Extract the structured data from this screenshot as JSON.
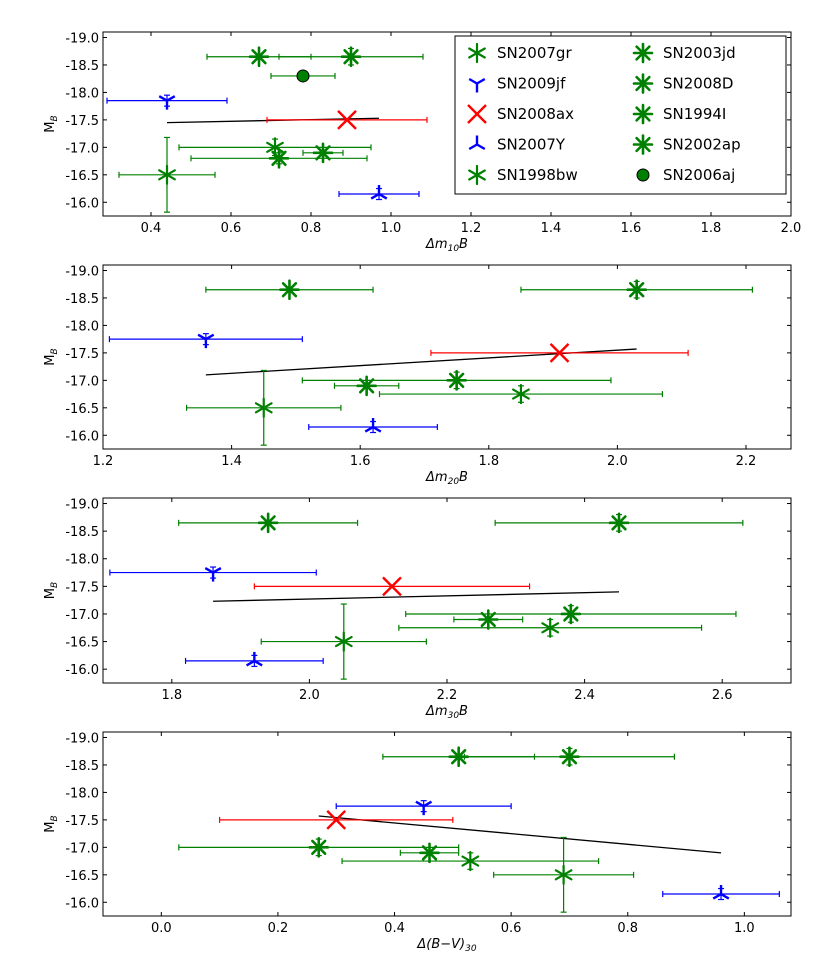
{
  "colors": {
    "green": "#008000",
    "blue": "#0000ff",
    "red": "#ff0000",
    "black": "#000000",
    "green_dark": "#006400"
  },
  "legend": {
    "location": "upper-right of first panel",
    "entries": [
      {
        "name": "SN2007gr",
        "marker": "star6thin",
        "color": "#008000"
      },
      {
        "name": "SN2009jf",
        "marker": "tri_down",
        "color": "#0000ff"
      },
      {
        "name": "SN2008ax",
        "marker": "x",
        "color": "#ff0000"
      },
      {
        "name": "SN2007Y",
        "marker": "tri_up",
        "color": "#0000ff"
      },
      {
        "name": "SN1998bw",
        "marker": "star6thin",
        "color": "#008000"
      },
      {
        "name": "SN2003jd",
        "marker": "asterisk",
        "color": "#008000"
      },
      {
        "name": "SN2008D",
        "marker": "asterisk",
        "color": "#008000"
      },
      {
        "name": "SN1994I",
        "marker": "asterisk",
        "color": "#008000"
      },
      {
        "name": "SN2002ap",
        "marker": "asterisk",
        "color": "#008000"
      },
      {
        "name": "SN2006aj",
        "marker": "circle",
        "color": "#008000"
      }
    ]
  },
  "chart_data": [
    {
      "type": "scatter",
      "title": "",
      "xlabel": "Δm10B",
      "xlabel_main": "Δm",
      "xlabel_sub": "10",
      "xlabel_tail": "B",
      "ylabel": "MB",
      "ylabel_main": "M",
      "ylabel_sub": "B",
      "xlim": [
        0.28,
        2.0
      ],
      "ylim": [
        -15.75,
        -19.1
      ],
      "xticks": [
        0.4,
        0.6,
        0.8,
        1.0,
        1.2,
        1.4,
        1.6,
        1.8,
        2.0
      ],
      "xtick_labels": [
        "0.4",
        "0.6",
        "0.8",
        "1.0",
        "1.2",
        "1.4",
        "1.6",
        "1.8",
        "2.0"
      ],
      "yticks": [
        -19.0,
        -18.5,
        -18.0,
        -17.5,
        -17.0,
        -16.5,
        -16.0
      ],
      "ytick_labels": [
        "-19.0",
        "-18.5",
        "-18.0",
        "-17.5",
        "-17.0",
        "-16.5",
        "-16.0"
      ],
      "points": [
        {
          "sn": "SN2007gr",
          "x": 0.71,
          "y": -17.0,
          "xerr": 0.24,
          "yerr": 0.15,
          "marker": "star6thin",
          "color": "#008000"
        },
        {
          "sn": "SN2009jf",
          "x": 0.44,
          "y": -17.85,
          "xerr": 0.15,
          "yerr": 0.1,
          "marker": "tri_down",
          "color": "#0000ff"
        },
        {
          "sn": "SN2008ax",
          "x": 0.89,
          "y": -17.5,
          "xerr": 0.2,
          "yerr": 0.0,
          "marker": "x",
          "color": "#ff0000"
        },
        {
          "sn": "SN2007Y",
          "x": 0.97,
          "y": -16.15,
          "xerr": 0.1,
          "yerr": 0.1,
          "marker": "tri_up",
          "color": "#0000ff"
        },
        {
          "sn": "SN1998bw",
          "x": 0.44,
          "y": -16.5,
          "xerr": 0.12,
          "yerr": 0.68,
          "marker": "star6thin",
          "color": "#008000"
        },
        {
          "sn": "SN2003jd",
          "x": 0.67,
          "y": -18.65,
          "xerr": 0.13,
          "yerr": 0.0,
          "marker": "asterisk",
          "color": "#008000"
        },
        {
          "sn": "SN2008D",
          "x": 0.9,
          "y": -18.65,
          "xerr": 0.18,
          "yerr": 0.15,
          "marker": "asterisk",
          "color": "#008000"
        },
        {
          "sn": "SN1994I",
          "x": 0.72,
          "y": -16.8,
          "xerr": 0.22,
          "yerr": 0.1,
          "marker": "asterisk",
          "color": "#008000"
        },
        {
          "sn": "SN2002ap",
          "x": 0.83,
          "y": -16.9,
          "xerr": 0.05,
          "yerr": 0.0,
          "marker": "asterisk",
          "color": "#008000"
        },
        {
          "sn": "SN2006aj",
          "x": 0.78,
          "y": -18.3,
          "xerr": 0.08,
          "yerr": 0.0,
          "marker": "circle",
          "color": "#008000"
        }
      ],
      "fit_line": {
        "x": [
          0.44,
          0.97
        ],
        "y": [
          -17.45,
          -17.53
        ],
        "color": "#000000"
      },
      "show_legend": true
    },
    {
      "type": "scatter",
      "title": "",
      "xlabel": "Δm20B",
      "xlabel_main": "Δm",
      "xlabel_sub": "20",
      "xlabel_tail": "B",
      "ylabel": "MB",
      "ylabel_main": "M",
      "ylabel_sub": "B",
      "xlim": [
        1.2,
        2.27
      ],
      "ylim": [
        -15.75,
        -19.1
      ],
      "xticks": [
        1.2,
        1.4,
        1.6,
        1.8,
        2.0,
        2.2
      ],
      "xtick_labels": [
        "1.2",
        "1.4",
        "1.6",
        "1.8",
        "2.0",
        "2.2"
      ],
      "yticks": [
        -19.0,
        -18.5,
        -18.0,
        -17.5,
        -17.0,
        -16.5,
        -16.0
      ],
      "ytick_labels": [
        "-19.0",
        "-18.5",
        "-18.0",
        "-17.5",
        "-17.0",
        "-16.5",
        "-16.0"
      ],
      "points": [
        {
          "sn": "SN2007gr",
          "x": 1.85,
          "y": -16.75,
          "xerr": 0.22,
          "yerr": 0.15,
          "marker": "star6thin",
          "color": "#008000"
        },
        {
          "sn": "SN2009jf",
          "x": 1.36,
          "y": -17.75,
          "xerr": 0.15,
          "yerr": 0.1,
          "marker": "tri_down",
          "color": "#0000ff"
        },
        {
          "sn": "SN2008ax",
          "x": 1.91,
          "y": -17.5,
          "xerr": 0.2,
          "yerr": 0.0,
          "marker": "x",
          "color": "#ff0000"
        },
        {
          "sn": "SN2007Y",
          "x": 1.62,
          "y": -16.15,
          "xerr": 0.1,
          "yerr": 0.1,
          "marker": "tri_up",
          "color": "#0000ff"
        },
        {
          "sn": "SN1998bw",
          "x": 1.45,
          "y": -16.5,
          "xerr": 0.12,
          "yerr": 0.68,
          "marker": "star6thin",
          "color": "#008000"
        },
        {
          "sn": "SN2003jd",
          "x": 1.49,
          "y": -18.65,
          "xerr": 0.13,
          "yerr": 0.0,
          "marker": "asterisk",
          "color": "#008000"
        },
        {
          "sn": "SN2008D",
          "x": 2.03,
          "y": -18.65,
          "xerr": 0.18,
          "yerr": 0.15,
          "marker": "asterisk",
          "color": "#008000"
        },
        {
          "sn": "SN1994I",
          "x": 1.75,
          "y": -17.0,
          "xerr": 0.24,
          "yerr": 0.15,
          "marker": "asterisk",
          "color": "#008000"
        },
        {
          "sn": "SN2002ap",
          "x": 1.61,
          "y": -16.9,
          "xerr": 0.05,
          "yerr": 0.0,
          "marker": "asterisk",
          "color": "#008000"
        }
      ],
      "fit_line": {
        "x": [
          1.36,
          2.03
        ],
        "y": [
          -17.1,
          -17.57
        ],
        "color": "#000000"
      },
      "show_legend": false
    },
    {
      "type": "scatter",
      "title": "",
      "xlabel": "Δm30B",
      "xlabel_main": "Δm",
      "xlabel_sub": "30",
      "xlabel_tail": "B",
      "ylabel": "MB",
      "ylabel_main": "M",
      "ylabel_sub": "B",
      "xlim": [
        1.7,
        2.7
      ],
      "ylim": [
        -15.75,
        -19.1
      ],
      "xticks": [
        1.8,
        2.0,
        2.2,
        2.4,
        2.6
      ],
      "xtick_labels": [
        "1.8",
        "2.0",
        "2.2",
        "2.4",
        "2.6"
      ],
      "yticks": [
        -19.0,
        -18.5,
        -18.0,
        -17.5,
        -17.0,
        -16.5,
        -16.0
      ],
      "ytick_labels": [
        "-19.0",
        "-18.5",
        "-18.0",
        "-17.5",
        "-17.0",
        "-16.5",
        "-16.0"
      ],
      "points": [
        {
          "sn": "SN2007gr",
          "x": 2.35,
          "y": -16.75,
          "xerr": 0.22,
          "yerr": 0.15,
          "marker": "star6thin",
          "color": "#008000"
        },
        {
          "sn": "SN2009jf",
          "x": 1.86,
          "y": -17.75,
          "xerr": 0.15,
          "yerr": 0.1,
          "marker": "tri_down",
          "color": "#0000ff"
        },
        {
          "sn": "SN2008ax",
          "x": 2.12,
          "y": -17.5,
          "xerr": 0.2,
          "yerr": 0.0,
          "marker": "x",
          "color": "#ff0000"
        },
        {
          "sn": "SN2007Y",
          "x": 1.92,
          "y": -16.15,
          "xerr": 0.1,
          "yerr": 0.1,
          "marker": "tri_up",
          "color": "#0000ff"
        },
        {
          "sn": "SN1998bw",
          "x": 2.05,
          "y": -16.5,
          "xerr": 0.12,
          "yerr": 0.68,
          "marker": "star6thin",
          "color": "#008000"
        },
        {
          "sn": "SN2003jd",
          "x": 1.94,
          "y": -18.65,
          "xerr": 0.13,
          "yerr": 0.0,
          "marker": "asterisk",
          "color": "#008000"
        },
        {
          "sn": "SN2008D",
          "x": 2.45,
          "y": -18.65,
          "xerr": 0.18,
          "yerr": 0.15,
          "marker": "asterisk",
          "color": "#008000"
        },
        {
          "sn": "SN1994I",
          "x": 2.38,
          "y": -17.0,
          "xerr": 0.24,
          "yerr": 0.15,
          "marker": "asterisk",
          "color": "#008000"
        },
        {
          "sn": "SN2002ap",
          "x": 2.26,
          "y": -16.9,
          "xerr": 0.05,
          "yerr": 0.0,
          "marker": "asterisk",
          "color": "#008000"
        }
      ],
      "fit_line": {
        "x": [
          1.86,
          2.45
        ],
        "y": [
          -17.23,
          -17.4
        ],
        "color": "#000000"
      },
      "show_legend": false
    },
    {
      "type": "scatter",
      "title": "",
      "xlabel": "Δ(B−V)30",
      "xlabel_main": "Δ(B−V)",
      "xlabel_sub": "30",
      "xlabel_tail": "",
      "ylabel": "MB",
      "ylabel_main": "M",
      "ylabel_sub": "B",
      "xlim": [
        -0.1,
        1.08
      ],
      "ylim": [
        -15.75,
        -19.1
      ],
      "xticks": [
        0.0,
        0.2,
        0.4,
        0.6,
        0.8,
        1.0
      ],
      "xtick_labels": [
        "0.0",
        "0.2",
        "0.4",
        "0.6",
        "0.8",
        "1.0"
      ],
      "yticks": [
        -19.0,
        -18.5,
        -18.0,
        -17.5,
        -17.0,
        -16.5,
        -16.0
      ],
      "ytick_labels": [
        "-19.0",
        "-18.5",
        "-18.0",
        "-17.5",
        "-17.0",
        "-16.5",
        "-16.0"
      ],
      "points": [
        {
          "sn": "SN2007gr",
          "x": 0.53,
          "y": -16.75,
          "xerr": 0.22,
          "yerr": 0.15,
          "marker": "star6thin",
          "color": "#008000"
        },
        {
          "sn": "SN2009jf",
          "x": 0.45,
          "y": -17.75,
          "xerr": 0.15,
          "yerr": 0.1,
          "marker": "tri_down",
          "color": "#0000ff"
        },
        {
          "sn": "SN2008ax",
          "x": 0.3,
          "y": -17.5,
          "xerr": 0.2,
          "yerr": 0.0,
          "marker": "x",
          "color": "#ff0000"
        },
        {
          "sn": "SN2007Y",
          "x": 0.96,
          "y": -16.15,
          "xerr": 0.1,
          "yerr": 0.1,
          "marker": "tri_up",
          "color": "#0000ff"
        },
        {
          "sn": "SN1998bw",
          "x": 0.69,
          "y": -16.5,
          "xerr": 0.12,
          "yerr": 0.68,
          "marker": "star6thin",
          "color": "#008000"
        },
        {
          "sn": "SN2003jd",
          "x": 0.51,
          "y": -18.65,
          "xerr": 0.13,
          "yerr": 0.0,
          "marker": "asterisk",
          "color": "#008000"
        },
        {
          "sn": "SN2008D",
          "x": 0.7,
          "y": -18.65,
          "xerr": 0.18,
          "yerr": 0.15,
          "marker": "asterisk",
          "color": "#008000"
        },
        {
          "sn": "SN1994I",
          "x": 0.27,
          "y": -17.0,
          "xerr": 0.24,
          "yerr": 0.15,
          "marker": "asterisk",
          "color": "#008000"
        },
        {
          "sn": "SN2002ap",
          "x": 0.46,
          "y": -16.9,
          "xerr": 0.05,
          "yerr": 0.0,
          "marker": "asterisk",
          "color": "#008000"
        }
      ],
      "fit_line": {
        "x": [
          0.27,
          0.96
        ],
        "y": [
          -17.57,
          -16.9
        ],
        "color": "#000000"
      },
      "show_legend": false
    }
  ]
}
